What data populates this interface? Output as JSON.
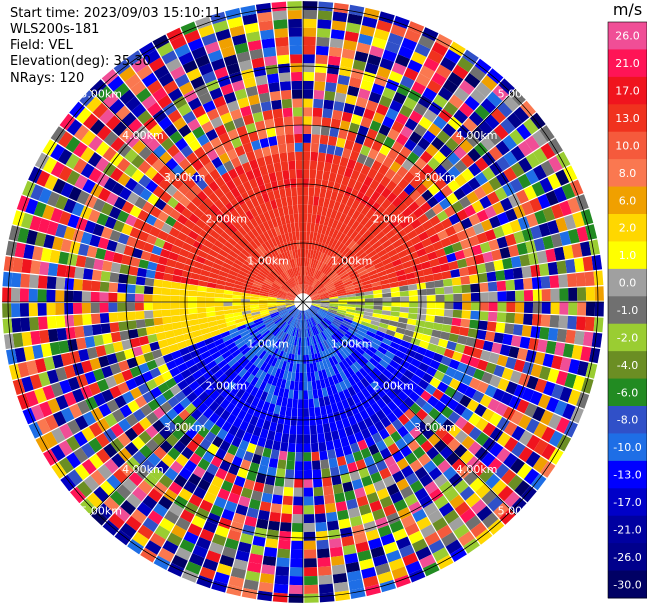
{
  "header": {
    "start_time": "Start time: 2023/09/03 15:10:11",
    "station": "WLS200s-181",
    "field": "Field: VEL",
    "elevation": "Elevation(deg): 35.30",
    "nrays": "NRays: 120"
  },
  "chart_data": {
    "type": "heatmap",
    "projection": "polar-ppi",
    "field": "VEL",
    "units": "m/s",
    "n_rays": 120,
    "range_rings_km": [
      1,
      2,
      3,
      4,
      5
    ],
    "ring_labels": [
      "1.00km",
      "2.00km",
      "3.00km",
      "4.00km",
      "5.00km"
    ],
    "max_range_km": 5.1,
    "spoke_angles_deg": [
      0,
      45,
      90,
      135,
      180,
      225,
      270,
      315
    ],
    "colorbar": {
      "ticks": [
        "26.0",
        "21.0",
        "17.0",
        "13.0",
        "10.0",
        "8.0",
        "6.0",
        "2.0",
        "1.0",
        "0.0",
        "-1.0",
        "-2.0",
        "-4.0",
        "-6.0",
        "-8.0",
        "-10.0",
        "-13.0",
        "-17.0",
        "-21.0",
        "-26.0",
        "-30.0"
      ],
      "colors": [
        "#f04e96",
        "#ff1456",
        "#f0141e",
        "#f0321e",
        "#f55a3c",
        "#fa7850",
        "#f0a000",
        "#ffd700",
        "#ffff00",
        "#a0a0a0",
        "#707070",
        "#9acd32",
        "#6b8e23",
        "#228b22",
        "#3050c8",
        "#1e6ee6",
        "#0000ff",
        "#0000c8",
        "#0000a0",
        "#00008c",
        "#000064"
      ]
    },
    "sectors": [
      {
        "from_deg": 280,
        "to_deg": 80,
        "velocity": 13,
        "description_values": [
          13,
          17,
          10
        ]
      },
      {
        "from_deg": 80,
        "to_deg": 110,
        "velocity": 0
      },
      {
        "from_deg": 110,
        "to_deg": 250,
        "velocity": -8
      },
      {
        "from_deg": 250,
        "to_deg": 280,
        "velocity": 1
      }
    ]
  },
  "colors": {
    "ring": "#000000",
    "background": "#ffffff"
  }
}
